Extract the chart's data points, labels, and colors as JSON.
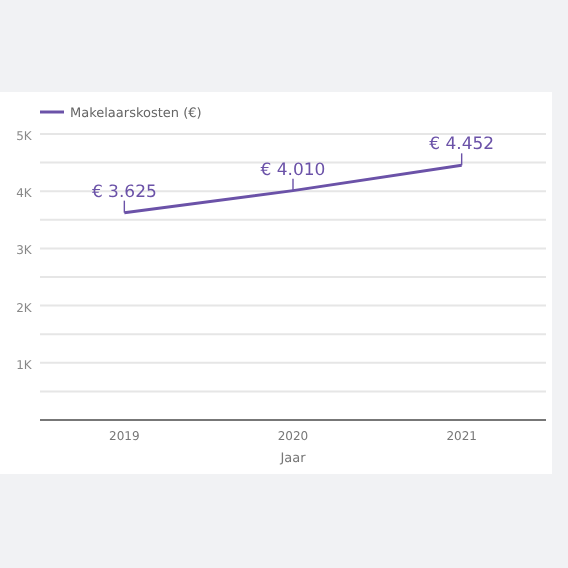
{
  "chart_data": {
    "type": "line",
    "xlabel": "Jaar",
    "categories": [
      "2019",
      "2020",
      "2021"
    ],
    "series": [
      {
        "name": "Makelaarskosten (€)",
        "color": "#6b52a8",
        "values": [
          3625,
          4010,
          4452
        ],
        "value_labels": [
          "€ 3.625",
          "€ 4.010",
          "€ 4.452"
        ]
      }
    ],
    "ylim": [
      0,
      5000
    ],
    "yticks": [
      {
        "value": 0,
        "label": null
      },
      {
        "value": 500,
        "label": null
      },
      {
        "value": 1000,
        "label": "1K"
      },
      {
        "value": 1500,
        "label": null
      },
      {
        "value": 2000,
        "label": "2K"
      },
      {
        "value": 2500,
        "label": null
      },
      {
        "value": 3000,
        "label": "3K"
      },
      {
        "value": 3500,
        "label": null
      },
      {
        "value": 4000,
        "label": "4K"
      },
      {
        "value": 4500,
        "label": null
      },
      {
        "value": 5000,
        "label": "5K"
      }
    ],
    "grid": "y",
    "legend": "top left",
    "marker": "none"
  }
}
